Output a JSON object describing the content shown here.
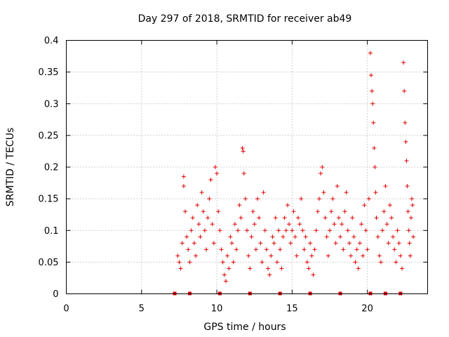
{
  "chart_data": {
    "type": "scatter",
    "title": "Day 297 of 2018, SRMTID for receiver ab49",
    "xlabel": "GPS time / hours",
    "ylabel": "SRMTID / TECUs",
    "xlim": [
      0,
      24
    ],
    "ylim": [
      0,
      0.4
    ],
    "xticks": [
      0,
      5,
      10,
      15,
      20
    ],
    "xtick_labels": [
      "0",
      "5",
      "10",
      "15",
      "20"
    ],
    "yticks": [
      0,
      0.05,
      0.1,
      0.15,
      0.2,
      0.25,
      0.3,
      0.35,
      0.4
    ],
    "ytick_labels": [
      "0",
      "0.05",
      "0.1",
      "0.15",
      "0.2",
      "0.25",
      "0.3",
      "0.35",
      "0.4"
    ],
    "grid": true,
    "marker": "+",
    "color": "#e00000",
    "baseline_markers_x": [
      7.2,
      8.2,
      10.2,
      12.2,
      14.2,
      16.2,
      18.2,
      20.2,
      21.2,
      22.2
    ],
    "series": [
      {
        "name": "SRMTID",
        "points": [
          [
            7.4,
            0.06
          ],
          [
            7.5,
            0.05
          ],
          [
            7.6,
            0.04
          ],
          [
            7.7,
            0.08
          ],
          [
            7.8,
            0.17
          ],
          [
            7.8,
            0.185
          ],
          [
            7.9,
            0.13
          ],
          [
            8.0,
            0.09
          ],
          [
            8.1,
            0.07
          ],
          [
            8.2,
            0.05
          ],
          [
            8.3,
            0.1
          ],
          [
            8.4,
            0.12
          ],
          [
            8.5,
            0.08
          ],
          [
            8.6,
            0.06
          ],
          [
            8.7,
            0.14
          ],
          [
            8.8,
            0.11
          ],
          [
            8.9,
            0.09
          ],
          [
            9.0,
            0.16
          ],
          [
            9.1,
            0.13
          ],
          [
            9.2,
            0.1
          ],
          [
            9.3,
            0.07
          ],
          [
            9.4,
            0.12
          ],
          [
            9.5,
            0.15
          ],
          [
            9.6,
            0.18
          ],
          [
            9.7,
            0.11
          ],
          [
            9.8,
            0.08
          ],
          [
            9.9,
            0.2
          ],
          [
            10.0,
            0.19
          ],
          [
            10.1,
            0.13
          ],
          [
            10.2,
            0.1
          ],
          [
            10.3,
            0.07
          ],
          [
            10.4,
            0.05
          ],
          [
            10.5,
            0.03
          ],
          [
            10.6,
            0.02
          ],
          [
            10.7,
            0.06
          ],
          [
            10.8,
            0.04
          ],
          [
            10.9,
            0.09
          ],
          [
            11.0,
            0.08
          ],
          [
            11.1,
            0.05
          ],
          [
            11.2,
            0.11
          ],
          [
            11.3,
            0.07
          ],
          [
            11.4,
            0.1
          ],
          [
            11.5,
            0.14
          ],
          [
            11.6,
            0.12
          ],
          [
            11.7,
            0.23
          ],
          [
            11.75,
            0.225
          ],
          [
            11.8,
            0.19
          ],
          [
            11.9,
            0.15
          ],
          [
            12.0,
            0.1
          ],
          [
            12.1,
            0.06
          ],
          [
            12.2,
            0.04
          ],
          [
            12.3,
            0.09
          ],
          [
            12.4,
            0.13
          ],
          [
            12.5,
            0.11
          ],
          [
            12.6,
            0.07
          ],
          [
            12.7,
            0.15
          ],
          [
            12.8,
            0.12
          ],
          [
            12.9,
            0.08
          ],
          [
            13.0,
            0.05
          ],
          [
            13.1,
            0.16
          ],
          [
            13.2,
            0.1
          ],
          [
            13.3,
            0.07
          ],
          [
            13.4,
            0.04
          ],
          [
            13.5,
            0.03
          ],
          [
            13.6,
            0.06
          ],
          [
            13.7,
            0.09
          ],
          [
            13.8,
            0.08
          ],
          [
            13.9,
            0.12
          ],
          [
            14.0,
            0.05
          ],
          [
            14.1,
            0.1
          ],
          [
            14.2,
            0.07
          ],
          [
            14.3,
            0.04
          ],
          [
            14.4,
            0.09
          ],
          [
            14.5,
            0.12
          ],
          [
            14.6,
            0.1
          ],
          [
            14.7,
            0.14
          ],
          [
            14.8,
            0.11
          ],
          [
            14.9,
            0.08
          ],
          [
            15.0,
            0.1
          ],
          [
            15.1,
            0.13
          ],
          [
            15.2,
            0.09
          ],
          [
            15.3,
            0.06
          ],
          [
            15.4,
            0.12
          ],
          [
            15.5,
            0.11
          ],
          [
            15.6,
            0.15
          ],
          [
            15.7,
            0.1
          ],
          [
            15.8,
            0.07
          ],
          [
            15.9,
            0.09
          ],
          [
            16.0,
            0.05
          ],
          [
            16.1,
            0.04
          ],
          [
            16.2,
            0.08
          ],
          [
            16.3,
            0.06
          ],
          [
            16.4,
            0.03
          ],
          [
            16.5,
            0.07
          ],
          [
            16.6,
            0.1
          ],
          [
            16.7,
            0.13
          ],
          [
            16.8,
            0.15
          ],
          [
            16.9,
            0.19
          ],
          [
            17.0,
            0.2
          ],
          [
            17.1,
            0.16
          ],
          [
            17.2,
            0.12
          ],
          [
            17.3,
            0.09
          ],
          [
            17.4,
            0.06
          ],
          [
            17.5,
            0.1
          ],
          [
            17.6,
            0.13
          ],
          [
            17.7,
            0.15
          ],
          [
            17.8,
            0.11
          ],
          [
            17.9,
            0.08
          ],
          [
            18.0,
            0.17
          ],
          [
            18.1,
            0.12
          ],
          [
            18.2,
            0.09
          ],
          [
            18.3,
            0.11
          ],
          [
            18.4,
            0.07
          ],
          [
            18.5,
            0.13
          ],
          [
            18.6,
            0.16
          ],
          [
            18.7,
            0.1
          ],
          [
            18.8,
            0.08
          ],
          [
            18.9,
            0.06
          ],
          [
            19.0,
            0.12
          ],
          [
            19.1,
            0.09
          ],
          [
            19.2,
            0.05
          ],
          [
            19.3,
            0.07
          ],
          [
            19.4,
            0.04
          ],
          [
            19.5,
            0.08
          ],
          [
            19.6,
            0.11
          ],
          [
            19.7,
            0.06
          ],
          [
            19.8,
            0.14
          ],
          [
            19.9,
            0.1
          ],
          [
            20.0,
            0.07
          ],
          [
            20.1,
            0.15
          ],
          [
            20.2,
            0.38
          ],
          [
            20.25,
            0.345
          ],
          [
            20.3,
            0.32
          ],
          [
            20.35,
            0.3
          ],
          [
            20.4,
            0.27
          ],
          [
            20.45,
            0.23
          ],
          [
            20.5,
            0.2
          ],
          [
            20.55,
            0.16
          ],
          [
            20.6,
            0.12
          ],
          [
            20.7,
            0.09
          ],
          [
            20.8,
            0.06
          ],
          [
            20.9,
            0.05
          ],
          [
            21.0,
            0.1
          ],
          [
            21.1,
            0.13
          ],
          [
            21.2,
            0.17
          ],
          [
            21.3,
            0.11
          ],
          [
            21.4,
            0.08
          ],
          [
            21.5,
            0.14
          ],
          [
            21.6,
            0.12
          ],
          [
            21.7,
            0.09
          ],
          [
            21.8,
            0.07
          ],
          [
            21.9,
            0.05
          ],
          [
            22.0,
            0.1
          ],
          [
            22.1,
            0.08
          ],
          [
            22.2,
            0.06
          ],
          [
            22.3,
            0.04
          ],
          [
            22.4,
            0.365
          ],
          [
            22.45,
            0.32
          ],
          [
            22.5,
            0.27
          ],
          [
            22.55,
            0.24
          ],
          [
            22.6,
            0.21
          ],
          [
            22.65,
            0.17
          ],
          [
            22.7,
            0.13
          ],
          [
            22.75,
            0.1
          ],
          [
            22.8,
            0.08
          ],
          [
            22.85,
            0.06
          ],
          [
            22.9,
            0.12
          ],
          [
            22.95,
            0.15
          ],
          [
            23.0,
            0.14
          ],
          [
            23.05,
            0.09
          ]
        ]
      }
    ]
  }
}
